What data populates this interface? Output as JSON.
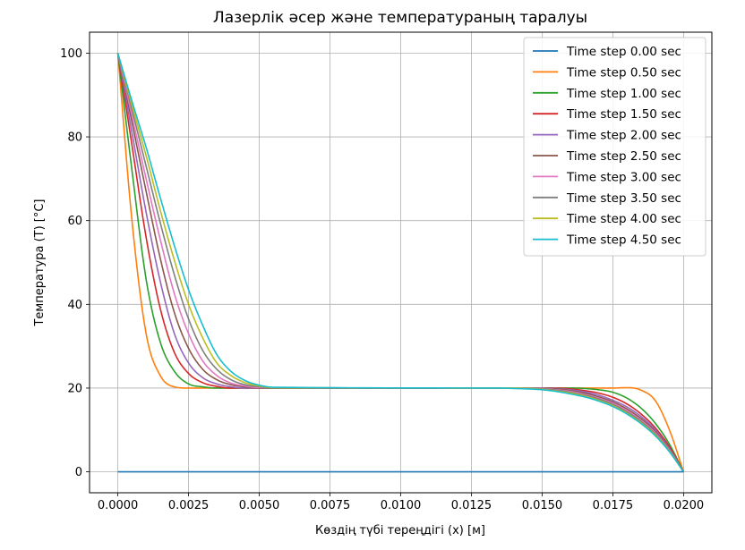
{
  "chart_data": {
    "type": "line",
    "title": "Лазерлік әсер және температураның таралуы",
    "xlabel": "Көздің түбі тереңдігі (x) [м]",
    "ylabel": "Температура (T) [°C]",
    "xlim": [
      -0.001,
      0.021
    ],
    "ylim": [
      -5,
      105
    ],
    "xticks": [
      0.0,
      0.0025,
      0.005,
      0.0075,
      0.01,
      0.0125,
      0.015,
      0.0175,
      0.02
    ],
    "xtick_labels": [
      "0.0000",
      "0.0025",
      "0.0050",
      "0.0075",
      "0.0100",
      "0.0125",
      "0.0150",
      "0.0175",
      "0.0200"
    ],
    "yticks": [
      0,
      20,
      40,
      60,
      80,
      100
    ],
    "ytick_labels": [
      "0",
      "20",
      "40",
      "60",
      "80",
      "100"
    ],
    "grid": true,
    "legend_position": "top-right",
    "series": [
      {
        "name": "Time step 0.00 sec",
        "color": "#1f77b4",
        "x": [
          0.0,
          0.02
        ],
        "y": [
          0,
          0
        ]
      },
      {
        "name": "Time step 0.50 sec",
        "color": "#ff7f0e",
        "x": [
          0.0,
          0.0005,
          0.001,
          0.0015,
          0.002,
          0.0025,
          0.003,
          0.0175,
          0.018,
          0.0185,
          0.019,
          0.0195,
          0.02
        ],
        "y": [
          100,
          60,
          33,
          23,
          20.3,
          20,
          20,
          20,
          20.1,
          19.5,
          17,
          10,
          0
        ]
      },
      {
        "name": "Time step 1.00 sec",
        "color": "#2ca02c",
        "x": [
          0.0,
          0.0005,
          0.001,
          0.0015,
          0.002,
          0.0025,
          0.003,
          0.0035,
          0.016,
          0.0165,
          0.017,
          0.0175,
          0.018,
          0.0185,
          0.019,
          0.0195,
          0.02
        ],
        "y": [
          100,
          72,
          46,
          31,
          24,
          21,
          20.3,
          20,
          20,
          19.9,
          19.6,
          19,
          17.6,
          15.2,
          11.6,
          6.6,
          0
        ]
      },
      {
        "name": "Time step 1.50 sec",
        "color": "#d62728",
        "x": [
          0.0,
          0.0005,
          0.001,
          0.0015,
          0.002,
          0.0025,
          0.003,
          0.0035,
          0.004,
          0.0155,
          0.016,
          0.0165,
          0.017,
          0.0175,
          0.018,
          0.0185,
          0.019,
          0.0195,
          0.02
        ],
        "y": [
          100,
          78,
          56,
          39,
          28.5,
          23.5,
          21.3,
          20.4,
          20,
          20,
          19.8,
          19.4,
          18.8,
          17.8,
          16.2,
          13.8,
          10.5,
          6,
          0
        ]
      },
      {
        "name": "Time step 2.00 sec",
        "color": "#9467bd",
        "x": [
          0.0,
          0.0005,
          0.001,
          0.0015,
          0.002,
          0.0025,
          0.003,
          0.0035,
          0.004,
          0.0045,
          0.015,
          0.0155,
          0.016,
          0.0165,
          0.017,
          0.0175,
          0.018,
          0.0185,
          0.019,
          0.0195,
          0.02
        ],
        "y": [
          100,
          81,
          62,
          45.5,
          33,
          26,
          22.5,
          21,
          20.3,
          20,
          20,
          19.9,
          19.6,
          19.1,
          18.3,
          17.1,
          15.5,
          13.2,
          10,
          5.6,
          0
        ]
      },
      {
        "name": "Time step 2.50 sec",
        "color": "#8c564b",
        "x": [
          0.0,
          0.0005,
          0.001,
          0.0015,
          0.002,
          0.0025,
          0.003,
          0.0035,
          0.004,
          0.0045,
          0.005,
          0.015,
          0.0155,
          0.016,
          0.0165,
          0.017,
          0.0175,
          0.018,
          0.0185,
          0.019,
          0.0195,
          0.02
        ],
        "y": [
          100,
          83.5,
          67,
          51,
          38,
          29.5,
          24.5,
          22,
          20.8,
          20.3,
          20,
          20,
          19.8,
          19.4,
          18.8,
          17.9,
          16.7,
          15,
          12.7,
          9.6,
          5.4,
          0
        ]
      },
      {
        "name": "Time step 3.00 sec",
        "color": "#e377c2",
        "x": [
          0.0,
          0.0005,
          0.001,
          0.0015,
          0.002,
          0.0025,
          0.003,
          0.0035,
          0.004,
          0.0045,
          0.005,
          0.0145,
          0.015,
          0.0155,
          0.016,
          0.0165,
          0.017,
          0.0175,
          0.018,
          0.0185,
          0.019,
          0.0195,
          0.02
        ],
        "y": [
          100,
          85,
          70,
          55.5,
          42.5,
          33,
          26.5,
          23,
          21.2,
          20.5,
          20.1,
          20,
          19.9,
          19.6,
          19.2,
          18.5,
          17.6,
          16.4,
          14.6,
          12.3,
          9.3,
          5.2,
          0
        ]
      },
      {
        "name": "Time step 3.50 sec",
        "color": "#7f7f7f",
        "x": [
          0.0,
          0.0005,
          0.001,
          0.0015,
          0.002,
          0.0025,
          0.003,
          0.0035,
          0.004,
          0.0045,
          0.005,
          0.0055,
          0.0145,
          0.015,
          0.0155,
          0.016,
          0.0165,
          0.017,
          0.0175,
          0.018,
          0.0185,
          0.019,
          0.0195,
          0.02
        ],
        "y": [
          100,
          86.5,
          73,
          59.5,
          47,
          36.5,
          29,
          24.5,
          22,
          20.8,
          20.3,
          20,
          20,
          19.8,
          19.5,
          19,
          18.3,
          17.4,
          16.1,
          14.3,
          12,
          9,
          5,
          0
        ]
      },
      {
        "name": "Time step 4.00 sec",
        "color": "#bcbd22",
        "x": [
          0.0,
          0.0005,
          0.001,
          0.0015,
          0.002,
          0.0025,
          0.003,
          0.0035,
          0.004,
          0.0045,
          0.005,
          0.0055,
          0.014,
          0.0145,
          0.015,
          0.0155,
          0.016,
          0.0165,
          0.017,
          0.0175,
          0.018,
          0.0185,
          0.019,
          0.0195,
          0.02
        ],
        "y": [
          100,
          87.5,
          75.5,
          62.5,
          50.5,
          40,
          32,
          26,
          23,
          21.3,
          20.5,
          20.1,
          20,
          19.9,
          19.7,
          19.3,
          18.8,
          18.1,
          17.1,
          15.8,
          14,
          11.7,
          8.8,
          4.9,
          0
        ]
      },
      {
        "name": "Time step 4.50 sec",
        "color": "#17becf",
        "x": [
          0.0,
          0.0005,
          0.001,
          0.0015,
          0.002,
          0.0025,
          0.003,
          0.0035,
          0.004,
          0.0045,
          0.005,
          0.0055,
          0.0135,
          0.014,
          0.0145,
          0.015,
          0.0155,
          0.016,
          0.0165,
          0.017,
          0.0175,
          0.018,
          0.0185,
          0.019,
          0.0195,
          0.02
        ],
        "y": [
          100,
          88.5,
          77.5,
          65.5,
          54,
          43.5,
          35,
          28,
          24,
          21.8,
          20.7,
          20.2,
          20,
          19.9,
          19.8,
          19.6,
          19.2,
          18.6,
          17.9,
          16.9,
          15.6,
          13.8,
          11.5,
          8.6,
          4.8,
          0
        ]
      }
    ]
  }
}
